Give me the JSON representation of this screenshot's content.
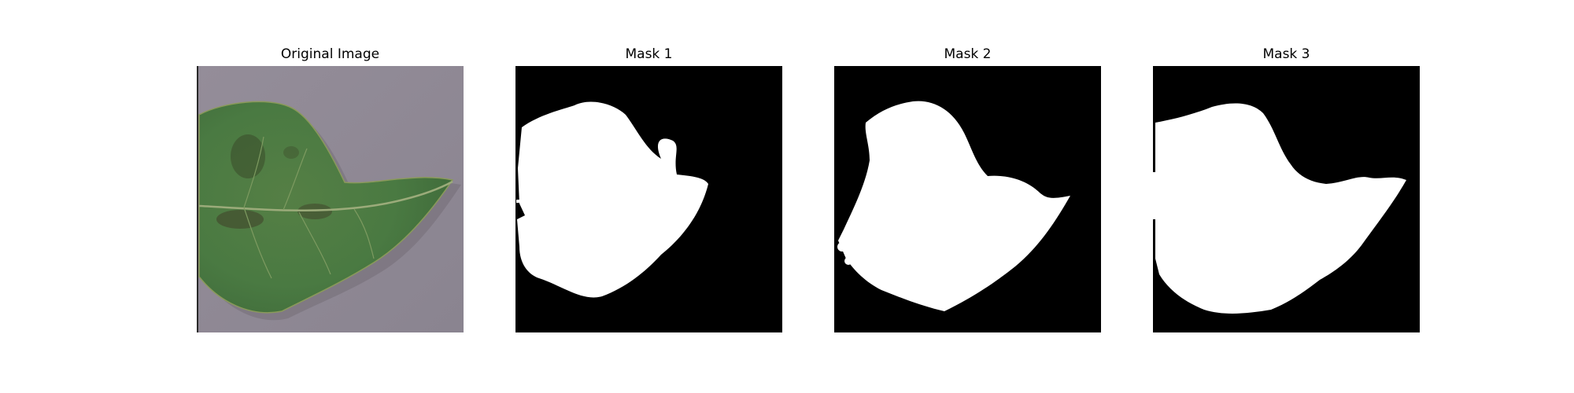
{
  "panels": [
    {
      "title": "Original Image",
      "image": "leaf-photo"
    },
    {
      "title": "Mask 1",
      "image": "binary-mask"
    },
    {
      "title": "Mask 2",
      "image": "binary-mask"
    },
    {
      "title": "Mask 3",
      "image": "binary-mask"
    }
  ],
  "colors": {
    "background": "#8d8793",
    "leaf": "#4c7a44",
    "mask_foreground": "#ffffff",
    "mask_background": "#000000"
  }
}
